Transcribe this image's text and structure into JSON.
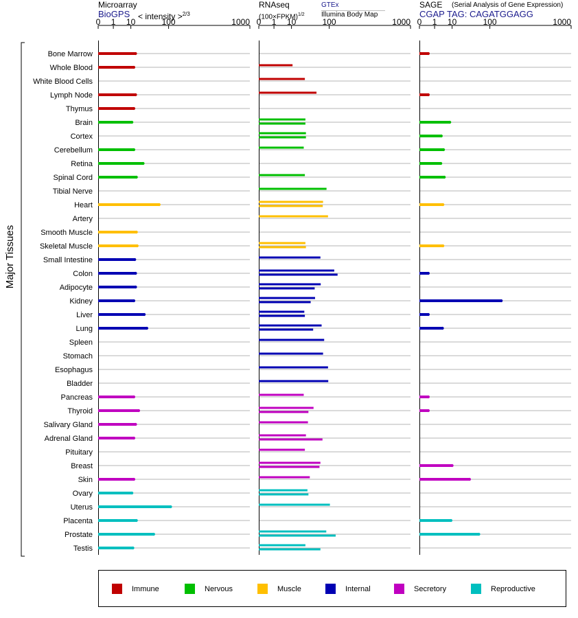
{
  "header": {
    "microarray_title": "Microarray",
    "biogps": "BioGPS",
    "intensity": "< intensity >",
    "intensity_exp": "2/3",
    "rnaseq_title": "RNAseq",
    "fpkm": "(100×FPKM)",
    "fpkm_exp": "1/2",
    "gtex": "GTEx",
    "illumina": "Illumina Body Map",
    "sage_title": "SAGE",
    "sage_full": "(Serial Analysis of Gene Expression)",
    "cgap": "CGAP TAG: CAGATGGAGG"
  },
  "y_axis_label": "Major Tissues",
  "legend": [
    {
      "label": "Immune",
      "color": "#c00000"
    },
    {
      "label": "Nervous",
      "color": "#00bf00"
    },
    {
      "label": "Muscle",
      "color": "#ffbf00"
    },
    {
      "label": "Internal",
      "color": "#0000b3"
    },
    {
      "label": "Secretory",
      "color": "#c000c0"
    },
    {
      "label": "Reproductive",
      "color": "#00bfbf"
    }
  ],
  "chart_data": {
    "type": "bar",
    "orientation": "horizontal",
    "scale": "power",
    "tick_labels": [
      "0",
      "1",
      "10",
      "100",
      "1000"
    ],
    "xlim": [
      0,
      1000
    ],
    "categories": [
      "Bone Marrow",
      "Whole Blood",
      "White Blood Cells",
      "Lymph Node",
      "Thymus",
      "Brain",
      "Cortex",
      "Cerebellum",
      "Retina",
      "Spinal Cord",
      "Tibial Nerve",
      "Heart",
      "Artery",
      "Smooth Muscle",
      "Skeletal Muscle",
      "Small Intestine",
      "Colon",
      "Adipocyte",
      "Kidney",
      "Liver",
      "Lung",
      "Spleen",
      "Stomach",
      "Esophagus",
      "Bladder",
      "Pancreas",
      "Thyroid",
      "Salivary Gland",
      "Adrenal Gland",
      "Pituitary",
      "Breast",
      "Skin",
      "Ovary",
      "Uterus",
      "Placenta",
      "Prostate",
      "Testis"
    ],
    "groups": [
      "Immune",
      "Immune",
      "Immune",
      "Immune",
      "Immune",
      "Nervous",
      "Nervous",
      "Nervous",
      "Nervous",
      "Nervous",
      "Nervous",
      "Muscle",
      "Muscle",
      "Muscle",
      "Muscle",
      "Internal",
      "Internal",
      "Internal",
      "Internal",
      "Internal",
      "Internal",
      "Internal",
      "Internal",
      "Internal",
      "Internal",
      "Secretory",
      "Secretory",
      "Secretory",
      "Secretory",
      "Secretory",
      "Secretory",
      "Secretory",
      "Reproductive",
      "Reproductive",
      "Reproductive",
      "Reproductive",
      "Reproductive"
    ],
    "panels": [
      {
        "name": "Microarray",
        "values": [
          [
            15
          ],
          [
            13
          ],
          [],
          [
            15
          ],
          [
            13
          ],
          [
            11
          ],
          [],
          [
            13
          ],
          [
            26
          ],
          [
            16
          ],
          [],
          [
            65
          ],
          [],
          [
            16
          ],
          [
            17
          ],
          [
            14
          ],
          [
            15
          ],
          [
            15
          ],
          [
            13
          ],
          [
            28
          ],
          [
            33
          ],
          [],
          [],
          [],
          [],
          [
            13
          ],
          [
            19
          ],
          [
            15
          ],
          [
            13
          ],
          [],
          [],
          [
            13
          ],
          [
            11
          ],
          [
            109
          ],
          [
            16
          ],
          [
            49
          ],
          [
            12
          ]
        ]
      },
      {
        "name": "RNAseq",
        "values": [
          [],
          [
            11
          ],
          [
            28
          ],
          [
            55
          ],
          [],
          [
            29,
            29
          ],
          [
            30,
            30
          ],
          [
            26
          ],
          [],
          [
            28
          ],
          [
            89
          ],
          [
            76,
            75
          ],
          [
            95
          ],
          [],
          [
            29,
            30
          ],
          [
            67
          ],
          [
            123,
            140
          ],
          [
            68,
            50
          ],
          [
            51,
            40
          ],
          [
            27,
            28
          ],
          [
            71,
            46
          ],
          [
            80
          ],
          [
            76
          ],
          [
            95
          ],
          [
            96
          ],
          [
            26
          ],
          [
            47,
            35
          ],
          [
            34
          ],
          [
            30,
            74
          ],
          [
            28
          ],
          [
            67,
            64
          ],
          [
            38
          ],
          [
            33,
            35
          ],
          [
            103
          ],
          [],
          [
            88,
            130
          ],
          [
            29,
            67
          ]
        ]
      },
      {
        "name": "SAGE",
        "values": [
          [
            0.2
          ],
          [],
          [],
          [
            0.2
          ],
          [],
          [
            8
          ],
          [
            3
          ],
          [
            4
          ],
          [
            2.8
          ],
          [
            4.4
          ],
          [],
          [
            3.7
          ],
          [],
          [],
          [
            3.7
          ],
          [],
          [
            0.2
          ],
          [],
          [
            157
          ],
          [
            0.2
          ],
          [
            3.5
          ],
          [],
          [],
          [],
          [],
          [
            0.2
          ],
          [
            0.2
          ],
          [],
          [],
          [],
          [
            10
          ],
          [
            36
          ],
          [],
          [],
          [
            9
          ],
          [
            60
          ],
          []
        ]
      }
    ]
  }
}
